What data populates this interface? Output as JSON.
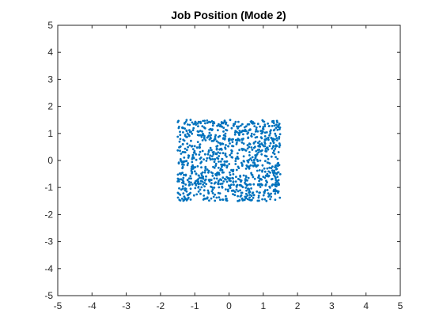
{
  "colors": {
    "marker": "#0072BD",
    "axis": "#262626",
    "background": "#ffffff"
  },
  "chart_data": {
    "type": "scatter",
    "title": "Job Position (Mode 2)",
    "xlabel": "",
    "ylabel": "",
    "xlim": [
      -5,
      5
    ],
    "ylim": [
      -5,
      5
    ],
    "xticks": [
      -5,
      -4,
      -3,
      -2,
      -1,
      0,
      1,
      2,
      3,
      4,
      5
    ],
    "yticks": [
      -5,
      -4,
      -3,
      -2,
      -1,
      0,
      1,
      2,
      3,
      4,
      5
    ],
    "grid": false,
    "box": true,
    "marker": "dot",
    "distribution": {
      "shape": "uniform-square",
      "x_range": [
        -1.5,
        1.5
      ],
      "y_range": [
        -1.5,
        1.5
      ],
      "approx_count": 1000
    },
    "series": [
      {
        "points": []
      }
    ]
  }
}
